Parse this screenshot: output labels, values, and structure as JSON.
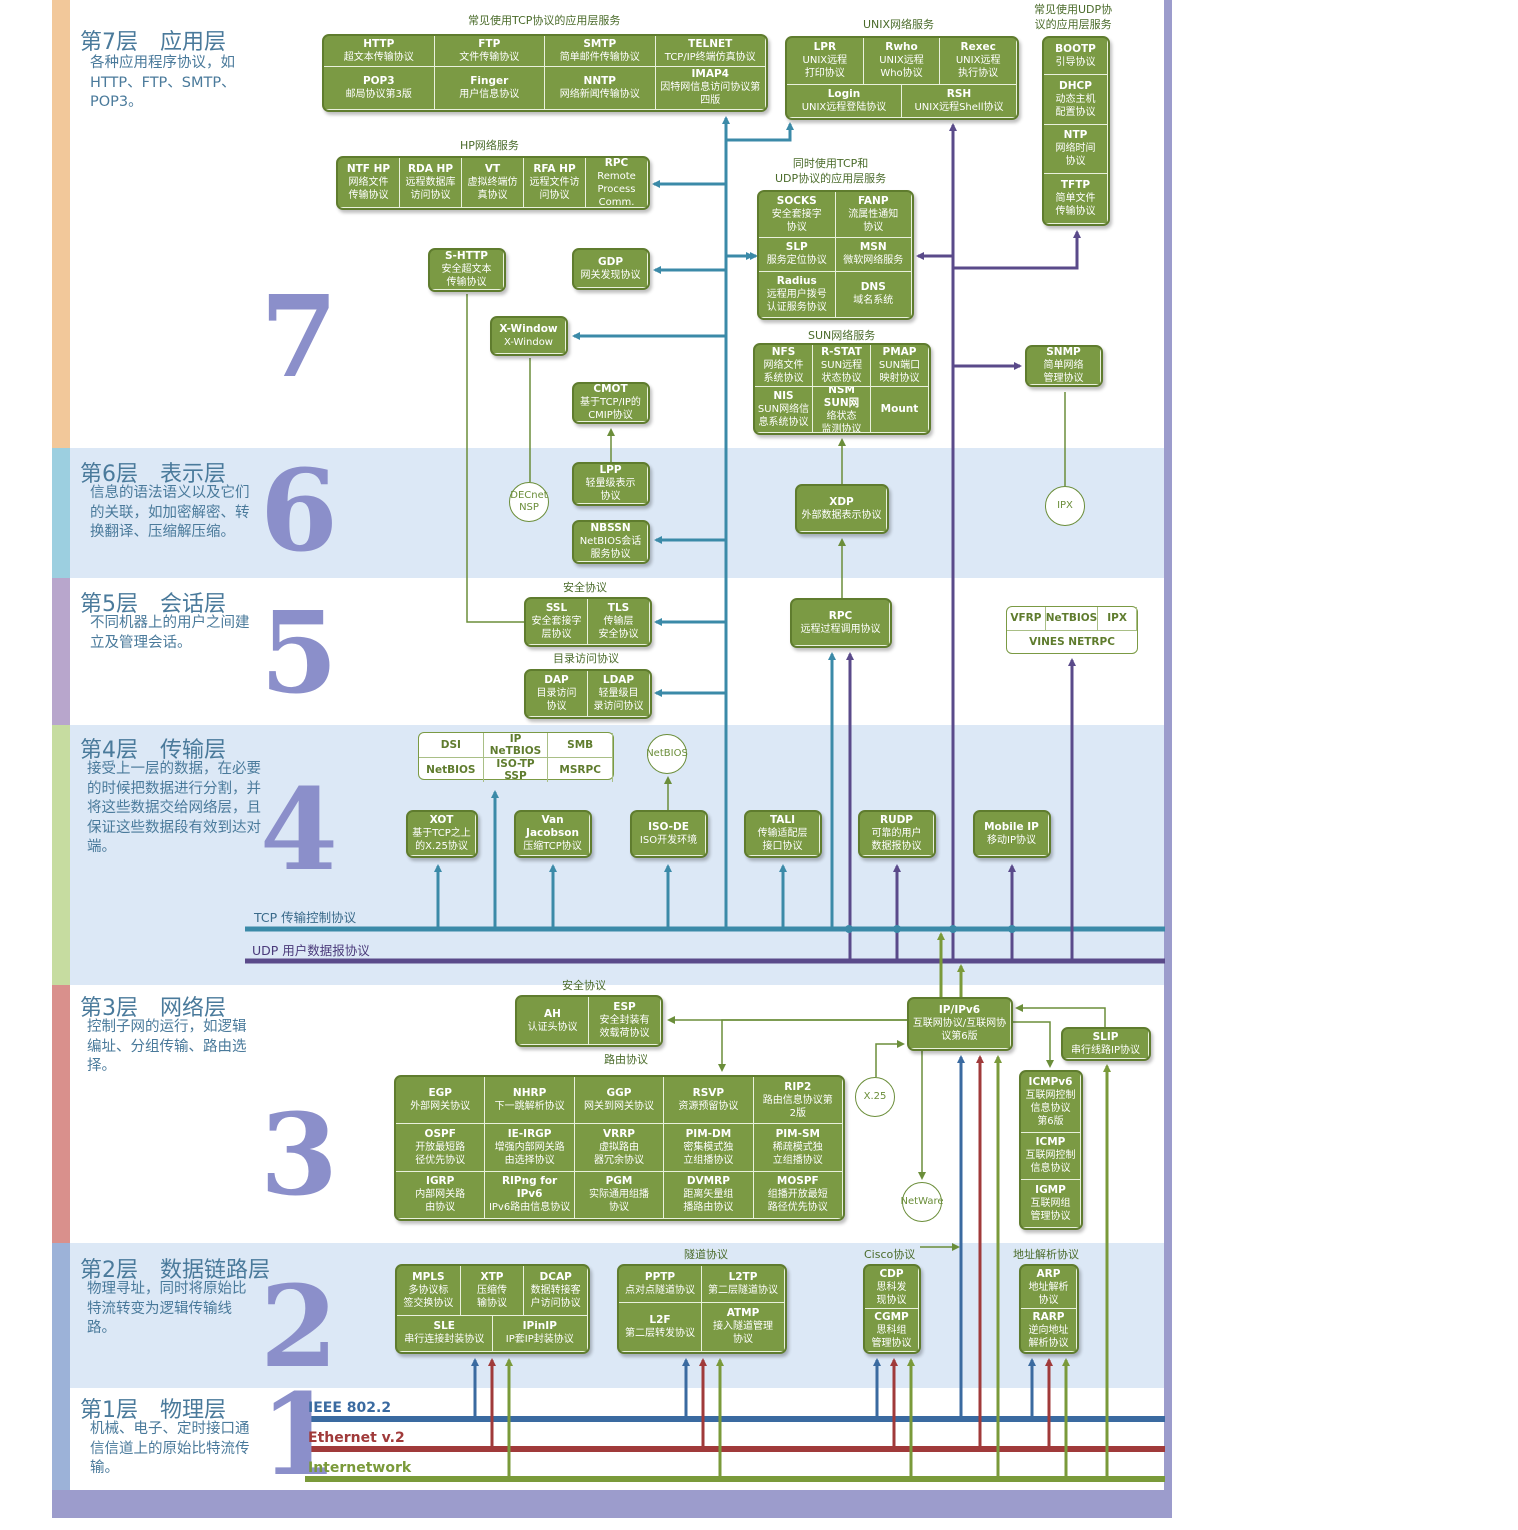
{
  "layers": [
    {
      "id": "l7",
      "num": "7",
      "title": "第7层　应用层",
      "desc": "各种应用程序协议，如HTTP、FTP、SMTP、POP3。"
    },
    {
      "id": "l6",
      "num": "6",
      "title": "第6层　表示层",
      "desc": "信息的语法语义以及它们的关联，如加密解密、转换翻译、压缩解压缩。"
    },
    {
      "id": "l5",
      "num": "5",
      "title": "第5层　会话层",
      "desc": "不同机器上的用户之间建立及管理会话。"
    },
    {
      "id": "l4",
      "num": "4",
      "title": "第4层　传输层",
      "desc": "接受上一层的数据，在必要的时候把数据进行分割，并将这些数据交给网络层，且保证这些数据段有效到达对端。"
    },
    {
      "id": "l3",
      "num": "3",
      "title": "第3层　网络层",
      "desc": "控制子网的运行，如逻辑编址、分组传输、路由选择。"
    },
    {
      "id": "l2",
      "num": "2",
      "title": "第2层　数据链路层",
      "desc": "物理寻址，同时将原始比特流转变为逻辑传输线路。"
    },
    {
      "id": "l1",
      "num": "1",
      "title": "第1层　物理层",
      "desc": "机械、电子、定时接口通信信道上的原始比特流传输。"
    }
  ],
  "buses": {
    "tcp": "TCP 传输控制协议",
    "udp": "UDP 用户数据报协议",
    "ieee": "IEEE 802.2",
    "ethernet": "Ethernet v.2",
    "internetwork": "Internetwork"
  },
  "colors": {
    "tcp": "#3b8aa8",
    "udp": "#5a4a8a",
    "ieee": "#3a6aa0",
    "ethernet": "#a03a3a",
    "internetwork": "#7a9a3a",
    "box": "#7b9a44"
  },
  "groups": [
    {
      "id": "g_tcp_app",
      "text": "常见使用TCP协议的应用层服务"
    },
    {
      "id": "g_unix",
      "text": "UNIX网络服务"
    },
    {
      "id": "g_udp_app",
      "text": "常见使用UDP协\n议的应用层服务"
    },
    {
      "id": "g_hp",
      "text": "HP网络服务"
    },
    {
      "id": "g_both",
      "text": "同时使用TCP和\nUDP协议的应用层服务"
    },
    {
      "id": "g_sun",
      "text": "SUN网络服务"
    },
    {
      "id": "g_sec5",
      "text": "安全协议"
    },
    {
      "id": "g_dir",
      "text": "目录访问协议"
    },
    {
      "id": "g_sec3",
      "text": "安全协议"
    },
    {
      "id": "g_route",
      "text": "路由协议"
    },
    {
      "id": "g_tunnel",
      "text": "隧道协议"
    },
    {
      "id": "g_cisco",
      "text": "Cisco协议"
    },
    {
      "id": "g_arp",
      "text": "地址解析协议"
    }
  ],
  "boxes": [
    {
      "id": "tcpapp",
      "cols": 4,
      "cells": [
        [
          "HTTP",
          "超文本传输协议"
        ],
        [
          "FTP",
          "文件传输协议"
        ],
        [
          "SMTP",
          "简单邮件传输协议"
        ],
        [
          "TELNET",
          "TCP/IP终端仿真协议"
        ],
        [
          "POP3",
          "邮局协议第3版"
        ],
        [
          "Finger",
          "用户信息协议"
        ],
        [
          "NNTP",
          "网络新闻传输协议"
        ],
        [
          "IMAP4",
          "因特网信息访问协议第四版"
        ]
      ]
    },
    {
      "id": "unix",
      "cols": 3,
      "cells": [
        [
          "LPR",
          "UNIX远程\n打印协议"
        ],
        [
          "Rwho",
          "UNIX远程\nWho协议"
        ],
        [
          "Rexec",
          "UNIX远程\n执行协议"
        ],
        [
          "Login",
          "UNIX远程登陆协议"
        ],
        [
          "RSH",
          "UNIX远程Shell协议"
        ]
      ]
    },
    {
      "id": "udpapp",
      "cols": 1,
      "cells": [
        [
          "BOOTP",
          "引导协议"
        ],
        [
          "DHCP",
          "动态主机\n配置协议"
        ],
        [
          "NTP",
          "网络时间\n协议"
        ],
        [
          "TFTP",
          "简单文件\n传输协议"
        ]
      ]
    },
    {
      "id": "hp",
      "cols": 5,
      "cells": [
        [
          "NTF HP",
          "网络文件\n传输协议"
        ],
        [
          "RDA HP",
          "远程数据库\n访问协议"
        ],
        [
          "VT",
          "虚拟终端仿\n真协议"
        ],
        [
          "RFA HP",
          "远程文件访\n问协议"
        ],
        [
          "RPC",
          "Remote\nProcess\nComm."
        ]
      ]
    },
    {
      "id": "both",
      "cols": 2,
      "cells": [
        [
          "SOCKS",
          "安全套接字\n协议"
        ],
        [
          "FANP",
          "流属性通知\n协议"
        ],
        [
          "SLP",
          "服务定位协议"
        ],
        [
          "MSN",
          "微软网络服务"
        ],
        [
          "Radius",
          "远程用户拨号\n认证服务协议"
        ],
        [
          "DNS",
          "域名系统"
        ]
      ]
    },
    {
      "id": "shttp",
      "cols": 1,
      "cells": [
        [
          "S-HTTP",
          "安全超文本\n传输协议"
        ]
      ]
    },
    {
      "id": "gdp",
      "cols": 1,
      "cells": [
        [
          "GDP",
          "网关发现协议"
        ]
      ]
    },
    {
      "id": "xwin",
      "cols": 1,
      "cells": [
        [
          "X-Window",
          "X-Window"
        ]
      ]
    },
    {
      "id": "cmot",
      "cols": 1,
      "cells": [
        [
          "CMOT",
          "基于TCP/IP的\nCMIP协议"
        ]
      ]
    },
    {
      "id": "sun",
      "cols": 3,
      "cells": [
        [
          "NFS",
          "网络文件\n系统协议"
        ],
        [
          "R-STAT",
          "SUN远程\n状态协议"
        ],
        [
          "PMAP",
          "SUN端口\n映射协议"
        ],
        [
          "NIS",
          "SUN网络信\n息系统协议"
        ],
        [
          "NSM SUN网",
          "络状态\n监测协议"
        ],
        [
          "Mount",
          ""
        ]
      ]
    },
    {
      "id": "snmp",
      "cols": 1,
      "cells": [
        [
          "SNMP",
          "简单网络\n管理协议"
        ]
      ]
    },
    {
      "id": "lpp",
      "cols": 1,
      "cells": [
        [
          "LPP",
          "轻量级表示\n协议"
        ]
      ]
    },
    {
      "id": "nbssn",
      "cols": 1,
      "cells": [
        [
          "NBSSN",
          "NetBIOS会话\n服务协议"
        ]
      ]
    },
    {
      "id": "xdp",
      "cols": 1,
      "cells": [
        [
          "XDP",
          "外部数据表示协议"
        ]
      ]
    },
    {
      "id": "ssltls",
      "cols": 2,
      "cells": [
        [
          "SSL",
          "安全套接字\n层协议"
        ],
        [
          "TLS",
          "传输层\n安全协议"
        ]
      ]
    },
    {
      "id": "rpc",
      "cols": 1,
      "cells": [
        [
          "RPC",
          "远程过程调用协议"
        ]
      ]
    },
    {
      "id": "dap",
      "cols": 2,
      "cells": [
        [
          "DAP",
          "目录访问\n协议"
        ],
        [
          "LDAP",
          "轻量级目\n录访问协议"
        ]
      ]
    },
    {
      "id": "xot",
      "cols": 1,
      "cells": [
        [
          "XOT",
          "基于TCP之上\n的X.25协议"
        ]
      ]
    },
    {
      "id": "vj",
      "cols": 1,
      "cells": [
        [
          "Van Jacobson",
          "压缩TCP协议"
        ]
      ]
    },
    {
      "id": "isode",
      "cols": 1,
      "cells": [
        [
          "ISO-DE",
          "ISO开发环境"
        ]
      ]
    },
    {
      "id": "tali",
      "cols": 1,
      "cells": [
        [
          "TALI",
          "传输适配层\n接口协议"
        ]
      ]
    },
    {
      "id": "rudp",
      "cols": 1,
      "cells": [
        [
          "RUDP",
          "可靠的用户\n数据报协议"
        ]
      ]
    },
    {
      "id": "mobip",
      "cols": 1,
      "cells": [
        [
          "Mobile IP",
          "移动IP协议"
        ]
      ]
    },
    {
      "id": "ahesp",
      "cols": 2,
      "cells": [
        [
          "AH",
          "认证头协议"
        ],
        [
          "ESP",
          "安全封装有\n效载荷协议"
        ]
      ]
    },
    {
      "id": "ipv6",
      "cols": 1,
      "cells": [
        [
          "IP/IPv6",
          "互联网协议/互联网协\n议第6版"
        ]
      ]
    },
    {
      "id": "slip",
      "cols": 1,
      "cells": [
        [
          "SLIP",
          "串行线路IP协议"
        ]
      ]
    },
    {
      "id": "routing",
      "cols": 5,
      "cells": [
        [
          "EGP",
          "外部网关协议"
        ],
        [
          "NHRP",
          "下一跳解析协议"
        ],
        [
          "GGP",
          "网关到网关协议"
        ],
        [
          "RSVP",
          "资源预留协议"
        ],
        [
          "RIP2",
          "路由信息协议第\n2版"
        ],
        [
          "OSPF",
          "开放最短路\n径优先协议"
        ],
        [
          "IE-IRGP",
          "增强内部网关路\n由选择协议"
        ],
        [
          "VRRP",
          "虚拟路由\n器冗余协议"
        ],
        [
          "PIM-DM",
          "密集模式独\n立组播协议"
        ],
        [
          "PIM-SM",
          "稀疏模式独\n立组播协议"
        ],
        [
          "IGRP",
          "内部网关路\n由协议"
        ],
        [
          "RIPng for IPv6",
          "IPv6路由信息协议"
        ],
        [
          "PGM",
          "实际通用组播\n协议"
        ],
        [
          "DVMRP",
          "距离矢量组\n播路由协议"
        ],
        [
          "MOSPF",
          "组播开放最短\n路径优先协议"
        ]
      ]
    },
    {
      "id": "icmp",
      "cols": 1,
      "cells": [
        [
          "ICMPv6",
          "互联网控制\n信息协议\n第6版"
        ],
        [
          "ICMP",
          "互联网控制\n信息协议"
        ],
        [
          "IGMP",
          "互联网组\n管理协议"
        ]
      ]
    },
    {
      "id": "mpls",
      "cols": 3,
      "cells": [
        [
          "MPLS",
          "多协议标\n签交换协议"
        ],
        [
          "XTP",
          "压缩传\n输协议"
        ],
        [
          "DCAP",
          "数据转接客\n户访问协议"
        ],
        [
          "SLE",
          "串行连接封装协议"
        ],
        [
          "IPinIP",
          "IP套IP封装协议"
        ]
      ]
    },
    {
      "id": "tunnel",
      "cols": 2,
      "cells": [
        [
          "PPTP",
          "点对点隧道协议"
        ],
        [
          "L2TP",
          "第二层隧道协议"
        ],
        [
          "L2F",
          "第二层转发协议"
        ],
        [
          "ATMP",
          "接入隧道管理\n协议"
        ]
      ]
    },
    {
      "id": "cisco",
      "cols": 1,
      "cells": [
        [
          "CDP",
          "思科发\n现协议"
        ],
        [
          "CGMP",
          "思科组\n管理协议"
        ]
      ]
    },
    {
      "id": "arp",
      "cols": 1,
      "cells": [
        [
          "ARP",
          "地址解析\n协议"
        ],
        [
          "RARP",
          "逆向地址\n解析协议"
        ]
      ]
    }
  ],
  "white_boxes": [
    {
      "id": "netbios4",
      "rows": [
        [
          "DSI",
          "IP NeTBIOS",
          "SMB"
        ],
        [
          "NetBIOS",
          "ISO-TP SSP",
          "MSRPC"
        ]
      ]
    },
    {
      "id": "vfrp",
      "rows": [
        [
          "VFRP",
          "NeTBIOS",
          "IPX"
        ],
        [
          "VINES NETRPC"
        ]
      ]
    }
  ],
  "circles": [
    {
      "id": "decnet",
      "text": "DECnet\nNSP"
    },
    {
      "id": "ipx",
      "text": "IPX"
    },
    {
      "id": "netbioscirc",
      "text": "NetBIOS"
    },
    {
      "id": "x25",
      "text": "X.25"
    },
    {
      "id": "netware",
      "text": "NetWare"
    }
  ]
}
